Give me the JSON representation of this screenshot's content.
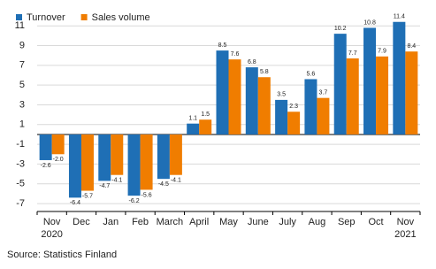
{
  "chart_data": {
    "type": "bar",
    "categories": [
      "Nov",
      "Dec",
      "Jan",
      "Feb",
      "March",
      "April",
      "May",
      "June",
      "July",
      "Aug",
      "Sep",
      "Oct",
      "Nov"
    ],
    "x_sublabels": [
      "2020",
      null,
      null,
      null,
      null,
      null,
      null,
      null,
      null,
      null,
      null,
      null,
      "2021"
    ],
    "series": [
      {
        "name": "Turnover",
        "color": "#1f6fb5",
        "values": [
          -2.6,
          -6.4,
          -4.7,
          -6.2,
          -4.5,
          1.1,
          8.5,
          6.8,
          3.5,
          5.6,
          10.2,
          10.8,
          11.4
        ],
        "value_labels": [
          "-2.6",
          "-6.4",
          "-4.7",
          "-6.2",
          "-4.5",
          "1.1",
          "8.5",
          "6.8",
          "3.5",
          "5.6",
          "10.2",
          "10.8",
          "11.4"
        ]
      },
      {
        "name": "Sales volume",
        "color": "#f07d00",
        "values": [
          -2.0,
          -5.7,
          -4.1,
          -5.6,
          -4.1,
          1.5,
          7.6,
          5.8,
          2.3,
          3.7,
          7.7,
          7.9,
          8.4
        ],
        "value_labels": [
          "-2.0",
          "-5.7",
          "-4.1",
          "-5.6",
          "-4.1",
          "1.5",
          "7.6",
          "5.8",
          "2.3",
          "3.7",
          "7.7",
          "7.9",
          "8.4"
        ]
      }
    ],
    "ylim": [
      -7.8,
      12.9
    ],
    "yticks": [
      -7,
      -5,
      -3,
      -1,
      1,
      3,
      5,
      7,
      9,
      11
    ],
    "grid": true,
    "legend": "top-left",
    "source": "Source: Statistics Finland"
  }
}
